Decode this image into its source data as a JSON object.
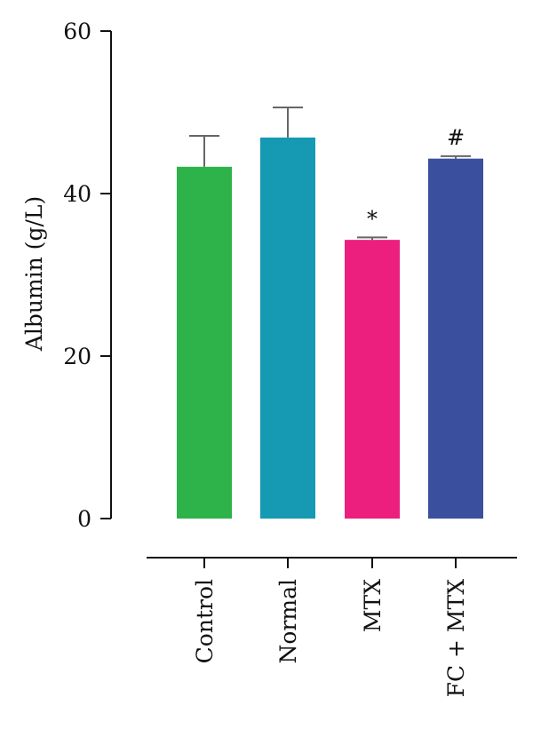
{
  "chart_data": {
    "type": "bar",
    "ylabel": "Albumin (g/L)",
    "ylim": [
      0,
      60
    ],
    "yticks": [
      0,
      20,
      40,
      60
    ],
    "ytick_labels": [
      "0",
      "20",
      "40",
      "60"
    ],
    "categories": [
      "Control",
      "Normal",
      "MTX",
      "FC + MTX"
    ],
    "values": [
      43.3,
      46.9,
      34.3,
      44.3
    ],
    "errors": [
      3.8,
      3.7,
      0.3,
      0.3
    ],
    "annotations": [
      "",
      "",
      "*",
      "#"
    ],
    "colors": [
      "#2db34a",
      "#1699b3",
      "#ec1f7f",
      "#3a4f9e"
    ]
  }
}
